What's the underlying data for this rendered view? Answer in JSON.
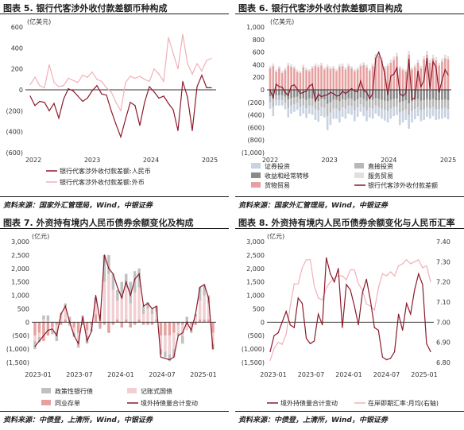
{
  "panels": {
    "p1": {
      "title": "图表 5. 银行代客涉外收付款差额币种构成",
      "source": "资料来源：国家外汇管理局，Wind，中银证券"
    },
    "p2": {
      "title": "图表 6. 银行代客涉外收付款差额项目构成",
      "source": "资料来源：国家外汇管理局，Wind，中银证券"
    },
    "p3": {
      "title": "图表 7. 外资持有境内人民币债券余额变化及构成",
      "source": "资料来源：中债登，上清所，Wind，中银证券"
    },
    "p4": {
      "title": "图表 8. 外资持有境内人民币债券余额变化与人民币汇率",
      "source": "资料来源：中债登，上清所，Wind，中银证券"
    }
  },
  "chart_data": [
    {
      "type": "line",
      "unit_label": "(亿美元)",
      "x_ticks": [
        "2022",
        "2023",
        "2024",
        "2025"
      ],
      "y_ticks": [
        "600",
        "400",
        "200",
        "0",
        "(200)",
        "(400)",
        "(600)"
      ],
      "ylim": [
        -600,
        600
      ],
      "series": [
        {
          "name": "银行代客涉外收付款差额:人民币",
          "color": "#8b1a2b",
          "values": [
            -60,
            -150,
            -110,
            -120,
            -200,
            -130,
            -270,
            -90,
            10,
            -10,
            -60,
            -110,
            -80,
            -10,
            40,
            -40,
            -50,
            -200,
            -330,
            -450,
            -280,
            -120,
            -150,
            -340,
            -120,
            30,
            -20,
            -80,
            -60,
            -130,
            -190,
            -390,
            80,
            -70,
            -390,
            30,
            140,
            20,
            20
          ]
        },
        {
          "name": "银行代客涉外收付款差额:外币",
          "color": "#f0b0b8",
          "values": [
            50,
            120,
            40,
            20,
            240,
            70,
            30,
            40,
            110,
            90,
            70,
            140,
            120,
            170,
            100,
            80,
            20,
            -20,
            -120,
            -200,
            70,
            130,
            110,
            130,
            100,
            80,
            200,
            150,
            80,
            500,
            350,
            200,
            530,
            250,
            150,
            250,
            180,
            280,
            300
          ]
        }
      ],
      "legend": "bottom"
    },
    {
      "type": "bar",
      "unit_label": "(亿美元)",
      "x_ticks": [
        "2022",
        "2023",
        "2024",
        "2025"
      ],
      "y_ticks": [
        "1,000",
        "800",
        "600",
        "400",
        "200",
        "0",
        "(200)",
        "(400)",
        "(600)",
        "(800)",
        "(1,000)"
      ],
      "ylim": [
        -1000,
        1000
      ],
      "stacked": true,
      "series": [
        {
          "name": "证券投资",
          "color": "#c8d2e0"
        },
        {
          "name": "直接投资",
          "color": "#b8b8b8"
        },
        {
          "name": "收益和经常转移",
          "color": "#8a8a8a"
        },
        {
          "name": "服务贸易",
          "color": "#e0e0e0"
        },
        {
          "name": "货物贸易",
          "color": "#e6a0a0"
        },
        {
          "name": "银行代客涉外收付款差额",
          "color": "#8b1a2b",
          "values": [
            -10,
            -120,
            90,
            50,
            40,
            -40,
            -90,
            60,
            80,
            10,
            -60,
            -40,
            -20,
            60,
            90,
            -180,
            -70,
            -110,
            -90,
            -80,
            -40,
            -60,
            -100,
            -90,
            -20,
            -60,
            -20,
            20,
            -20,
            -30,
            140,
            -10,
            -40,
            -140,
            -60,
            500,
            600,
            450,
            250,
            -80,
            220,
            250,
            350,
            -60,
            -100,
            -50,
            490,
            -150,
            -130,
            300,
            50,
            150,
            500,
            20,
            450,
            360,
            -40,
            150,
            320,
            240
          ]
        }
      ],
      "legend": "bottom"
    },
    {
      "type": "bar",
      "unit_label": "(亿元)",
      "x_ticks": [
        "2023-01",
        "2023-07",
        "2024-01",
        "2024-07",
        "2025-01"
      ],
      "y_ticks": [
        "3,000",
        "2,500",
        "2,000",
        "1,500",
        "1,000",
        "500",
        "0",
        "(500)",
        "(1,000)",
        "(1,500)"
      ],
      "ylim": [
        -1500,
        3000
      ],
      "series": [
        {
          "name": "政策性银行债",
          "color": "#c0c0c0"
        },
        {
          "name": "记账式国债",
          "color": "#f2cfd2"
        },
        {
          "name": "同业存单",
          "color": "#e6a0a0"
        },
        {
          "name": "境外持债量合计变动",
          "color": "#8b1a2b",
          "values": [
            -900,
            -700,
            -500,
            -300,
            -250,
            -500,
            300,
            600,
            0,
            -500,
            -800,
            200,
            -700,
            -350,
            1000,
            50,
            2500,
            2000,
            1800,
            1300,
            900,
            1500,
            1000,
            1600,
            1800,
            600,
            700,
            500,
            600,
            -1300,
            -1350,
            -1400,
            -1300,
            -500,
            -400,
            0,
            -300,
            300,
            1300,
            1400,
            900,
            -1000
          ]
        }
      ],
      "legend": "bottom"
    },
    {
      "type": "line",
      "unit_label": "(亿元)",
      "x_ticks": [
        "2023-01",
        "2023-07",
        "2024-01",
        "2024-07",
        "2025-01"
      ],
      "y_ticks": [
        "3,000",
        "2,500",
        "2,000",
        "1,500",
        "1,000",
        "500",
        "0",
        "(500)",
        "(1,000)",
        "(1,500)"
      ],
      "y2_ticks": [
        "7.40",
        "7.30",
        "7.20",
        "7.10",
        "7.00",
        "6.90",
        "6.80"
      ],
      "ylim": [
        -1500,
        3000
      ],
      "y2lim": [
        6.8,
        7.4
      ],
      "series": [
        {
          "name": "境外持债量合计变动",
          "color": "#8b1a2b",
          "values": [
            -1100,
            -500,
            -400,
            0,
            400,
            -100,
            -200,
            900,
            700,
            -600,
            -800,
            -700,
            300,
            -100,
            2400,
            1800,
            1500,
            2000,
            -200,
            1400,
            1200,
            600,
            -100,
            1100,
            1600,
            800,
            -200,
            -300,
            -1300,
            -1400,
            -1350,
            -1100,
            300,
            -300,
            700,
            300,
            1200,
            1800,
            1400,
            -800,
            -1100
          ]
        },
        {
          "name": "在岸即期汇率:月均(右轴)",
          "color": "#f0b0b8",
          "axis": "right",
          "values": [
            6.81,
            6.87,
            6.9,
            6.89,
            6.94,
            7.08,
            7.19,
            7.19,
            7.27,
            7.31,
            7.31,
            7.18,
            7.12,
            7.11,
            7.17,
            7.2,
            7.22,
            7.23,
            7.23,
            7.21,
            7.26,
            7.26,
            7.19,
            7.16,
            7.09,
            7.08,
            7.06,
            7.17,
            7.24,
            7.23,
            7.25,
            7.23,
            7.28,
            7.29,
            7.31,
            7.29,
            7.3,
            7.31,
            7.27,
            7.28,
            7.2
          ]
        }
      ],
      "legend": "bottom"
    }
  ],
  "p2_stack": {
    "pos_max": [
      380,
      420,
      320,
      380,
      300,
      350,
      430,
      410,
      380,
      320,
      300,
      400,
      350,
      330,
      380,
      420,
      400,
      430,
      360,
      400,
      370,
      380,
      330,
      410,
      420,
      360,
      420,
      380,
      330,
      360,
      420,
      440,
      400,
      340,
      420,
      570,
      600,
      520,
      380,
      420,
      480,
      530,
      590,
      380,
      350,
      320,
      620,
      360,
      400,
      480,
      380,
      540,
      620,
      480,
      560,
      520,
      430,
      500,
      560,
      540
    ],
    "neg_max": [
      -300,
      -420,
      -250,
      -250,
      -250,
      -310,
      -440,
      -380,
      -350,
      -320,
      -420,
      -380,
      -450,
      -380,
      -400,
      -480,
      -510,
      -420,
      -440,
      -640,
      -560,
      -460,
      -460,
      -520,
      -430,
      -460,
      -380,
      -400,
      -500,
      -430,
      -350,
      -420,
      -500,
      -440,
      -460,
      -380,
      -420,
      -460,
      -490,
      -520,
      -460,
      -420,
      -400,
      -560,
      -520,
      -480,
      -620,
      -520,
      -470,
      -420,
      -500,
      -480,
      -430,
      -460,
      -420,
      -480,
      -470,
      -460,
      -440,
      -470
    ]
  },
  "p3_stack": {
    "policy": [
      -300,
      -200,
      150,
      200,
      -150,
      -350,
      50,
      100,
      200,
      -150,
      -250,
      50,
      -300,
      -100,
      200,
      -50,
      1000,
      700,
      600,
      400,
      600,
      500,
      800,
      800,
      700,
      300,
      250,
      200,
      200,
      -200,
      -200,
      -250,
      -300,
      -100,
      -300,
      200,
      -100,
      100,
      500,
      400,
      300,
      -200
    ],
    "treasury": [
      -200,
      -150,
      100,
      50,
      -100,
      -250,
      300,
      500,
      -50,
      -200,
      -300,
      200,
      -200,
      -150,
      400,
      300,
      1500,
      1800,
      1200,
      700,
      900,
      1200,
      700,
      1100,
      1200,
      300,
      500,
      300,
      300,
      -500,
      -600,
      -700,
      -600,
      -300,
      -400,
      -200,
      -200,
      200,
      700,
      900,
      600,
      -400
    ],
    "ncd": [
      -500,
      -400,
      -700,
      -500,
      -200,
      -100,
      -100,
      100,
      -100,
      -200,
      -400,
      -100,
      -300,
      -100,
      300,
      -200,
      -100,
      -400,
      -100,
      100,
      -200,
      100,
      -200,
      -100,
      100,
      -100,
      -100,
      -100,
      100,
      -500,
      -500,
      -500,
      -400,
      -100,
      -100,
      -100,
      -100,
      -100,
      100,
      100,
      100,
      -400
    ]
  }
}
